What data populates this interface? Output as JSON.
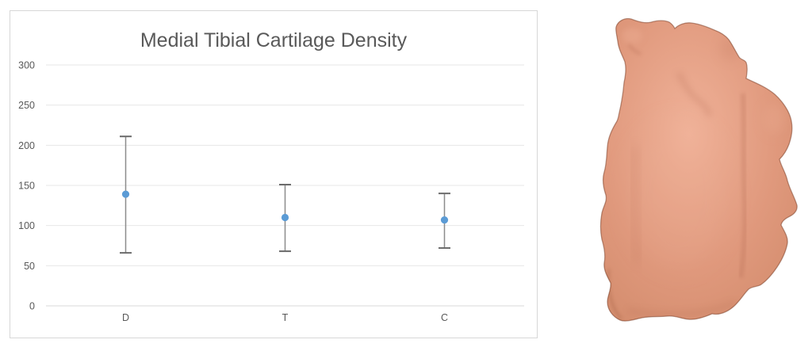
{
  "page": {
    "background_color": "#ffffff"
  },
  "chart": {
    "container_border_color": "#d7d7d7",
    "background_color": "#ffffff",
    "title_color": "#595959",
    "axis_text_color": "#595959",
    "gridline_color": "#e7e7e7",
    "axis_line_color": "#d9d9d9",
    "marker_color": "#5b9bd5",
    "error_bar_color": "#8c8c8c",
    "error_cap_color": "#6b6b6b"
  },
  "chart_data": {
    "type": "scatter",
    "title": "Medial Tibial Cartilage Density",
    "categories": [
      "D",
      "T",
      "C"
    ],
    "values": [
      139,
      110,
      107
    ],
    "error_upper": [
      211,
      151,
      140
    ],
    "error_lower": [
      66,
      68,
      72
    ],
    "xlabel": "",
    "ylabel": "",
    "ylim": [
      0,
      300
    ],
    "yticks": [
      0,
      50,
      100,
      150,
      200,
      250,
      300
    ],
    "grid": true,
    "legend": false
  },
  "figure": {
    "description": "3D rendered medial tibial cartilage surface",
    "base_color": "#e0997d",
    "highlight_color": "#f0b299",
    "edge_color": "#d18a6a",
    "shadow_color": "#aa6148",
    "outline_color": "#76371f"
  }
}
